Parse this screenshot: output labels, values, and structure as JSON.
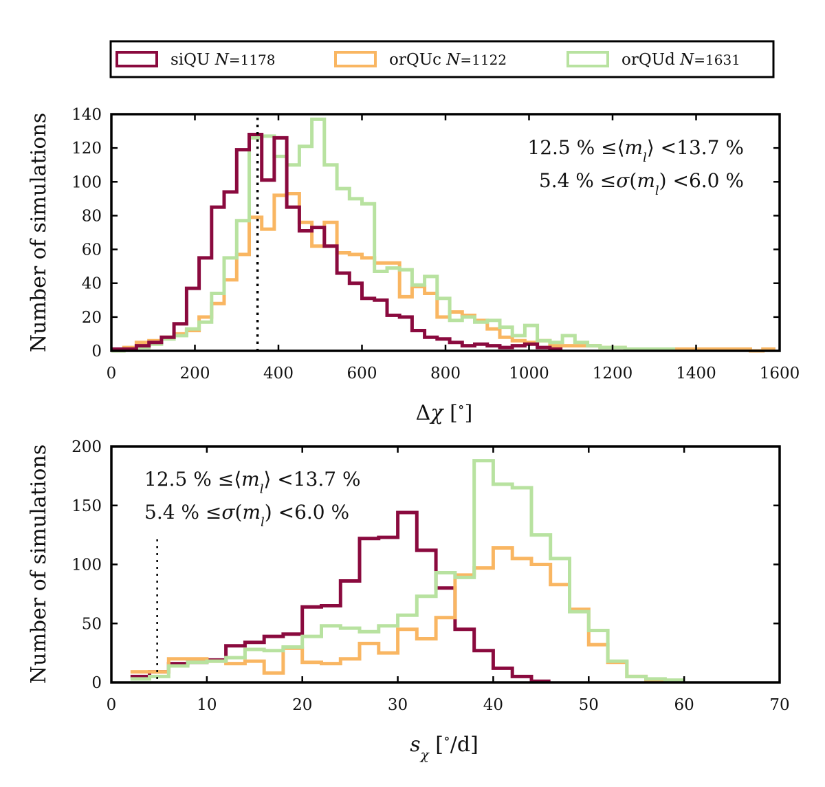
{
  "legend": {
    "entries": [
      {
        "name": "siQU",
        "n_label": "N",
        "n_value": "=1178",
        "color": "#8a0a3e"
      },
      {
        "name": "orQUc",
        "n_label": "N",
        "n_value": "=1122",
        "color": "#f9b662"
      },
      {
        "name": "orQUd",
        "n_label": "N",
        "n_value": "=1631",
        "color": "#b8e2a0"
      }
    ]
  },
  "chart_data": [
    {
      "type": "histogram",
      "ylabel": "Number of simulations",
      "xlabel": "Δχ [°]",
      "xlim": [
        0,
        1600
      ],
      "ylim": [
        0,
        140
      ],
      "xticks": [
        "0",
        "200",
        "400",
        "600",
        "800",
        "1000",
        "1200",
        "1400",
        "1600"
      ],
      "yticks": [
        "0",
        "20",
        "40",
        "60",
        "80",
        "100",
        "120",
        "140"
      ],
      "annotation": [
        "12.5 % ≤⟨m_l⟩ <13.7 %",
        "5.4 % ≤σ(m_l) <6.0 %"
      ],
      "vline": 350,
      "bin_width": 30,
      "bin_start": 0,
      "series": [
        {
          "name": "siQU",
          "values": [
            1,
            1,
            3,
            5,
            8,
            16,
            37,
            55,
            85,
            94,
            119,
            128,
            101,
            126,
            85,
            71,
            73,
            62,
            46,
            40,
            31,
            30,
            21,
            20,
            12,
            8,
            7,
            5,
            3,
            4,
            3,
            2,
            3,
            4,
            2,
            1,
            0,
            0,
            0,
            0,
            0,
            0,
            0,
            0,
            0,
            0,
            0,
            0,
            0,
            0,
            0,
            0,
            0
          ]
        },
        {
          "name": "orQUc",
          "values": [
            1,
            2,
            5,
            6,
            8,
            10,
            12,
            20,
            28,
            42,
            57,
            79,
            72,
            92,
            93,
            76,
            62,
            76,
            58,
            57,
            55,
            52,
            52,
            32,
            38,
            34,
            20,
            23,
            21,
            18,
            13,
            8,
            6,
            5,
            6,
            3,
            3,
            3,
            3,
            2,
            2,
            1,
            1,
            1,
            1,
            1,
            1,
            1,
            1,
            1,
            1,
            0,
            1
          ]
        },
        {
          "name": "orQUd",
          "values": [
            0,
            1,
            2,
            4,
            7,
            9,
            13,
            17,
            34,
            55,
            77,
            126,
            127,
            115,
            110,
            121,
            137,
            110,
            96,
            90,
            87,
            47,
            49,
            48,
            39,
            44,
            31,
            18,
            20,
            17,
            18,
            14,
            9,
            15,
            6,
            5,
            9,
            5,
            3,
            2,
            2,
            1,
            1,
            1,
            1,
            0,
            0,
            0,
            0,
            0,
            0,
            0,
            0
          ]
        }
      ]
    },
    {
      "type": "histogram",
      "ylabel": "Number of simulations",
      "xlabel": "s_χ [°/d]",
      "xlim": [
        0,
        70
      ],
      "ylim": [
        0,
        200
      ],
      "xticks": [
        "0",
        "10",
        "20",
        "30",
        "40",
        "50",
        "60",
        "70"
      ],
      "yticks": [
        "0",
        "50",
        "100",
        "150",
        "200"
      ],
      "annotation": [
        "12.5 % ≤⟨m_l⟩ <13.7 %",
        "5.4 % ≤σ(m_l) <6.0 %"
      ],
      "vline": 4.8,
      "bin_width": 2,
      "bin_start": 2,
      "series": [
        {
          "name": "siQU",
          "values": [
            5,
            9,
            16,
            17,
            19,
            31,
            34,
            39,
            41,
            64,
            65,
            86,
            122,
            123,
            144,
            112,
            80,
            45,
            27,
            12,
            5,
            1,
            0,
            0,
            0,
            0,
            0,
            0,
            0
          ]
        },
        {
          "name": "orQUc",
          "values": [
            9,
            9,
            20,
            20,
            18,
            16,
            18,
            8,
            29,
            17,
            16,
            20,
            33,
            25,
            45,
            37,
            55,
            91,
            97,
            114,
            105,
            100,
            83,
            62,
            32,
            17,
            5,
            1,
            0
          ]
        },
        {
          "name": "orQUd",
          "values": [
            3,
            5,
            14,
            17,
            18,
            21,
            28,
            27,
            30,
            39,
            48,
            46,
            43,
            48,
            57,
            73,
            93,
            89,
            188,
            168,
            165,
            125,
            105,
            60,
            44,
            18,
            5,
            3,
            2
          ]
        }
      ]
    }
  ]
}
